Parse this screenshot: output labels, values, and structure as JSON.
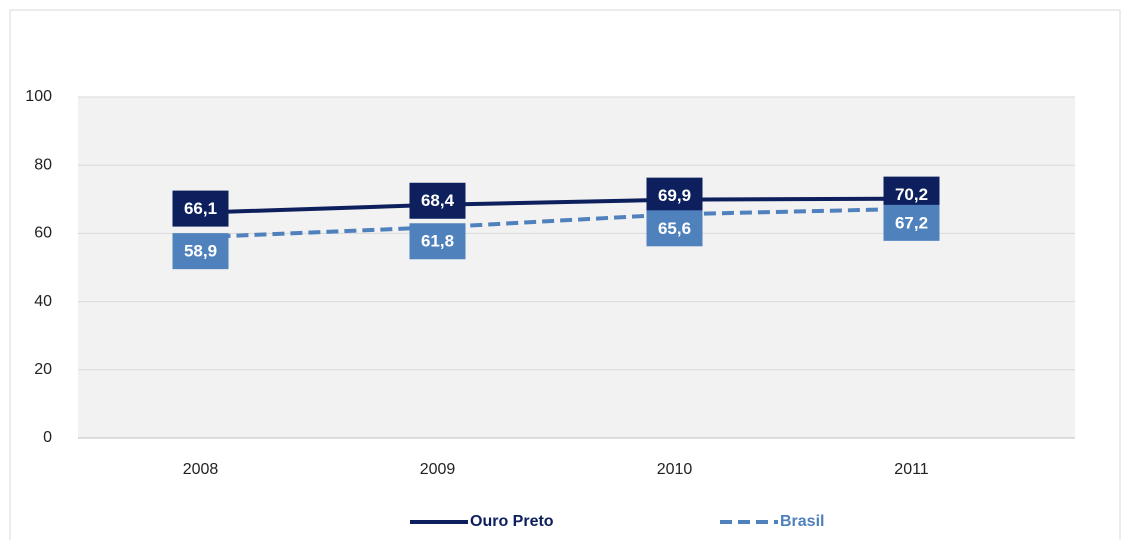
{
  "chart_data": {
    "type": "line",
    "categories": [
      "2008",
      "2009",
      "2010",
      "2011"
    ],
    "series": [
      {
        "name": "Ouro Preto",
        "color": "#0d1f5c",
        "dash": false,
        "values": [
          66.1,
          68.4,
          69.9,
          70.2
        ],
        "value_labels": [
          "66,1",
          "68,4",
          "69,9",
          "70,2"
        ]
      },
      {
        "name": "Brasil",
        "color": "#4f81bd",
        "dash": true,
        "values": [
          58.9,
          61.8,
          65.6,
          67.2
        ],
        "value_labels": [
          "58,9",
          "61,8",
          "65,6",
          "67,2"
        ]
      }
    ],
    "ylim": [
      0,
      100
    ],
    "yticks": [
      0,
      20,
      40,
      60,
      80,
      100
    ],
    "grid": true
  }
}
